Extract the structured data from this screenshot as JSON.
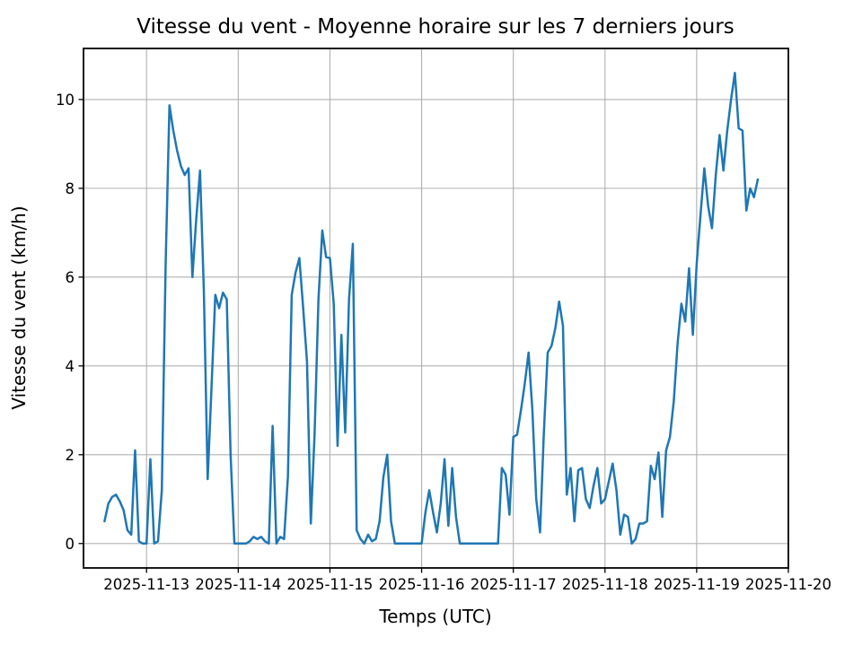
{
  "chart_data": {
    "type": "line",
    "title": "Vitesse du vent - Moyenne horaire sur les 7 derniers jours",
    "xlabel": "Temps (UTC)",
    "ylabel": "Vitesse du vent (km/h)",
    "x_tick_labels": [
      "2025-11-13",
      "2025-11-14",
      "2025-11-15",
      "2025-11-16",
      "2025-11-17",
      "2025-11-18",
      "2025-11-19",
      "2025-11-20"
    ],
    "x_tick_hours": [
      0,
      24,
      48,
      72,
      96,
      120,
      144,
      168
    ],
    "y_ticks": [
      0,
      2,
      4,
      6,
      8,
      10
    ],
    "y_tick_labels": [
      "0",
      "2",
      "4",
      "6",
      "8",
      "10"
    ],
    "xlim_hours": [
      -16.5,
      168
    ],
    "ylim": [
      -0.55,
      11.15
    ],
    "grid": true,
    "legend_position": "none",
    "line_color": "#1f77b4",
    "grid_color": "#b0b0b0",
    "spine_color": "#000000",
    "background_color": "#ffffff",
    "x_unit": "hours since 2025-11-13 00:00 UTC",
    "series": [
      {
        "name": "Vitesse du vent (km/h) - moyenne horaire",
        "x_start": -11,
        "x_step": 1,
        "values": [
          0.5,
          0.9,
          1.05,
          1.1,
          0.95,
          0.75,
          0.3,
          0.2,
          2.1,
          0.05,
          0,
          0,
          1.9,
          0,
          0.05,
          1.2,
          6.3,
          9.87,
          9.3,
          8.85,
          8.5,
          8.3,
          8.45,
          6.0,
          7.3,
          8.4,
          5.7,
          1.45,
          3.5,
          5.6,
          5.3,
          5.65,
          5.5,
          2.0,
          0,
          0,
          0,
          0,
          0.05,
          0.15,
          0.1,
          0.15,
          0.05,
          0,
          2.65,
          0,
          0.15,
          0.1,
          1.5,
          5.6,
          6.1,
          6.43,
          5.3,
          4.1,
          0.45,
          2.5,
          5.5,
          7.05,
          6.45,
          6.43,
          5.4,
          2.2,
          4.7,
          2.5,
          5.5,
          6.75,
          0.3,
          0.1,
          0,
          0.2,
          0.05,
          0.1,
          0.5,
          1.5,
          2.0,
          0.5,
          0,
          0,
          0,
          0,
          0,
          0,
          0,
          0,
          0.7,
          1.2,
          0.7,
          0.25,
          0.9,
          1.9,
          0.4,
          1.7,
          0.6,
          0,
          0,
          0,
          0,
          0,
          0,
          0,
          0,
          0,
          0,
          0,
          1.7,
          1.55,
          0.65,
          2.4,
          2.45,
          3.0,
          3.6,
          4.3,
          3.0,
          1.0,
          0.25,
          2.5,
          4.3,
          4.45,
          4.85,
          5.45,
          4.9,
          1.1,
          1.7,
          0.5,
          1.65,
          1.7,
          1.0,
          0.8,
          1.3,
          1.7,
          0.9,
          1.0,
          1.4,
          1.8,
          1.2,
          0.2,
          0.65,
          0.6,
          0,
          0.1,
          0.45,
          0.45,
          0.5,
          1.75,
          1.45,
          2.05,
          0.6,
          2.1,
          2.4,
          3.2,
          4.5,
          5.4,
          5.0,
          6.2,
          4.7,
          6.3,
          7.4,
          8.45,
          7.6,
          7.1,
          8.3,
          9.2,
          8.4,
          9.3,
          10.0,
          10.6,
          9.35,
          9.3,
          7.5,
          8.0,
          7.8,
          8.2
        ]
      }
    ]
  }
}
